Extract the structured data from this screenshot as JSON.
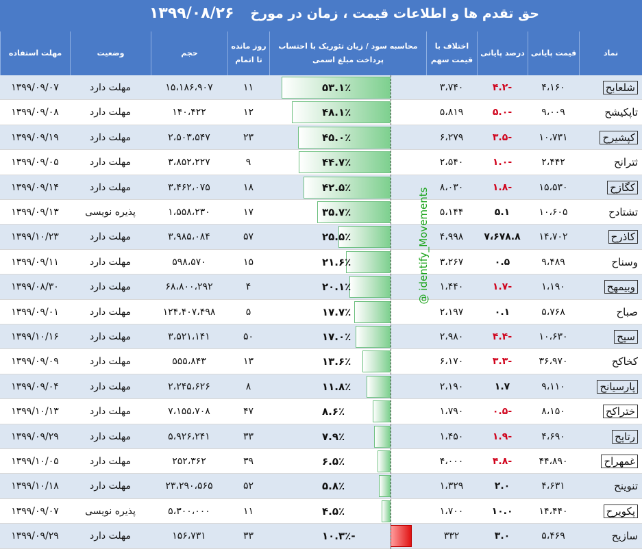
{
  "title": "حق تقدم ها و اطلاعات قیمت ، زمان   در مورخ",
  "date": "۱۳۹۹/۰۸/۲۶",
  "watermark": "@ identify_Movements",
  "headers": {
    "name": "نماد",
    "price": "قیمت پایانی",
    "pct": "درصد پایانی",
    "diff": "اختلاف با قیمت سهم",
    "calc": "محاسبه سود / زیان تئوریک با احتساب پرداخت مبلغ اسمی",
    "days": "روز مانده تا اتمام",
    "volume": "حجم",
    "status": "وضعیت",
    "deadline": "مهلت استفاده"
  },
  "colors": {
    "header_bg": "#4a7bc8",
    "negative": "#d0021b",
    "bar_positive": "#7ed08f",
    "bar_negative": "#e01313",
    "row_alt": "#dce6f2"
  },
  "rows": [
    {
      "name": "شلعابح",
      "price": "۴،۱۶۰",
      "pct": "-۴.۲",
      "diff": "۳،۷۴۰",
      "calc": "۵۳.۱٪",
      "calc_value": 53.1,
      "days": "۱۱",
      "volume": "۱۵،۱۸۶،۹۰۷",
      "status": "مهلت دارد",
      "deadline": "۱۳۹۹/۰۹/۰۷",
      "neg": true,
      "boxed": true
    },
    {
      "name": "تاپکیشح",
      "price": "۹،۰۰۹",
      "pct": "-۵.۰",
      "diff": "۵،۸۱۹",
      "calc": "۴۸.۱٪",
      "calc_value": 48.1,
      "days": "۱۲",
      "volume": "۱۴۰،۴۲۲",
      "status": "مهلت دارد",
      "deadline": "۱۳۹۹/۰۹/۰۸",
      "neg": true,
      "boxed": false
    },
    {
      "name": "کپشیرح",
      "price": "۱۰،۷۳۱",
      "pct": "-۳.۵",
      "diff": "۶،۲۷۹",
      "calc": "۴۵.۰٪",
      "calc_value": 45.0,
      "days": "۲۳",
      "volume": "۲،۵۰۳،۵۴۷",
      "status": "مهلت دارد",
      "deadline": "۱۳۹۹/۰۹/۱۹",
      "neg": true,
      "boxed": true
    },
    {
      "name": "ثترانح",
      "price": "۲،۴۴۲",
      "pct": "-۱.۰",
      "diff": "۲،۵۴۰",
      "calc": "۴۴.۷٪",
      "calc_value": 44.7,
      "days": "۹",
      "volume": "۳،۸۵۲،۲۲۷",
      "status": "مهلت دارد",
      "deadline": "۱۳۹۹/۰۹/۰۵",
      "neg": true,
      "boxed": false
    },
    {
      "name": "کگازح",
      "price": "۱۵،۵۳۰",
      "pct": "-۱.۸",
      "diff": "۸،۰۳۰",
      "calc": "۴۲.۵٪",
      "calc_value": 42.5,
      "days": "۱۸",
      "volume": "۳،۴۶۲،۰۷۵",
      "status": "مهلت دارد",
      "deadline": "۱۳۹۹/۰۹/۱۴",
      "neg": true,
      "boxed": true
    },
    {
      "name": "تشتادح",
      "price": "۱۰،۶۰۵",
      "pct": "۵.۱",
      "diff": "۵،۱۴۴",
      "calc": "۳۵.۷٪",
      "calc_value": 35.7,
      "days": "۱۷",
      "volume": "۱،۵۵۸،۲۳۰",
      "status": "پذیره نویسی",
      "deadline": "۱۳۹۹/۰۹/۱۳",
      "neg": false,
      "boxed": false
    },
    {
      "name": "کاذرح",
      "price": "۱۴،۷۰۲",
      "pct": "۷،۶۷۸.۸",
      "diff": "۴،۹۹۸",
      "calc": "۲۵.۵٪",
      "calc_value": 25.5,
      "days": "۵۷",
      "volume": "۳،۹۸۵،۰۸۴",
      "status": "مهلت دارد",
      "deadline": "۱۳۹۹/۱۰/۲۳",
      "neg": false,
      "boxed": true
    },
    {
      "name": "وسناح",
      "price": "۹،۴۸۹",
      "pct": "۰.۵",
      "diff": "۳،۲۶۷",
      "calc": "۲۱.۶٪",
      "calc_value": 21.6,
      "days": "۱۵",
      "volume": "۵۹۸،۵۷۰",
      "status": "مهلت دارد",
      "deadline": "۱۳۹۹/۰۹/۱۱",
      "neg": false,
      "boxed": false
    },
    {
      "name": "وبیمهح",
      "price": "۱،۱۹۰",
      "pct": "-۱.۷",
      "diff": "۱،۴۴۰",
      "calc": "۲۰.۱٪",
      "calc_value": 20.1,
      "days": "۴",
      "volume": "۶۸،۸۰۰،۲۹۲",
      "status": "مهلت دارد",
      "deadline": "۱۳۹۹/۰۸/۳۰",
      "neg": true,
      "boxed": true
    },
    {
      "name": "صباح",
      "price": "۵،۷۶۸",
      "pct": "۰.۱",
      "diff": "۲،۱۹۷",
      "calc": "۱۷.۷٪",
      "calc_value": 17.7,
      "days": "۵",
      "volume": "۱۲۴،۴۰۷،۴۹۸",
      "status": "مهلت دارد",
      "deadline": "۱۳۹۹/۰۹/۰۱",
      "neg": false,
      "boxed": false
    },
    {
      "name": "سپح",
      "price": "۱۰،۶۳۰",
      "pct": "-۴.۴",
      "diff": "۲،۹۸۰",
      "calc": "۱۷.۰٪",
      "calc_value": 17.0,
      "days": "۵۰",
      "volume": "۳،۵۲۱،۱۴۱",
      "status": "مهلت دارد",
      "deadline": "۱۳۹۹/۱۰/۱۶",
      "neg": true,
      "boxed": true
    },
    {
      "name": "کخاکح",
      "price": "۳۶،۹۷۰",
      "pct": "-۳.۳",
      "diff": "۶،۱۷۰",
      "calc": "۱۳.۶٪",
      "calc_value": 13.6,
      "days": "۱۳",
      "volume": "۵۵۵،۸۴۳",
      "status": "مهلت دارد",
      "deadline": "۱۳۹۹/۰۹/۰۹",
      "neg": true,
      "boxed": false
    },
    {
      "name": "پارسیانح",
      "price": "۹،۱۱۰",
      "pct": "۱.۷",
      "diff": "۲،۱۹۰",
      "calc": "۱۱.۸٪",
      "calc_value": 11.8,
      "days": "۸",
      "volume": "۲،۲۴۵،۶۲۶",
      "status": "مهلت دارد",
      "deadline": "۱۳۹۹/۰۹/۰۴",
      "neg": false,
      "boxed": true
    },
    {
      "name": "ختراکح",
      "price": "۸،۱۵۰",
      "pct": "-۰.۵",
      "diff": "۱،۷۹۰",
      "calc": "۸.۶٪",
      "calc_value": 8.6,
      "days": "۴۷",
      "volume": "۷،۱۵۵،۷۰۸",
      "status": "مهلت دارد",
      "deadline": "۱۳۹۹/۱۰/۱۳",
      "neg": true,
      "boxed": true
    },
    {
      "name": "رتاپح",
      "price": "۴،۶۹۰",
      "pct": "-۱.۹",
      "diff": "۱،۴۵۰",
      "calc": "۷.۹٪",
      "calc_value": 7.9,
      "days": "۳۳",
      "volume": "۵،۹۲۶،۲۴۱",
      "status": "مهلت دارد",
      "deadline": "۱۳۹۹/۰۹/۲۹",
      "neg": true,
      "boxed": true
    },
    {
      "name": "غمهراح",
      "price": "۴۴،۸۹۰",
      "pct": "-۴.۸",
      "diff": "۴،۰۰۰",
      "calc": "۶.۵٪",
      "calc_value": 6.5,
      "days": "۳۹",
      "volume": "۲۵۲،۳۶۲",
      "status": "مهلت دارد",
      "deadline": "۱۳۹۹/۱۰/۰۵",
      "neg": true,
      "boxed": true
    },
    {
      "name": "تنوینح",
      "price": "۴،۶۳۱",
      "pct": "۲.۰",
      "diff": "۱،۳۲۹",
      "calc": "۵.۸٪",
      "calc_value": 5.8,
      "days": "۵۲",
      "volume": "۲۳،۲۹۰،۵۶۵",
      "status": "مهلت دارد",
      "deadline": "۱۳۹۹/۱۰/۱۸",
      "neg": false,
      "boxed": false
    },
    {
      "name": "پکویرح",
      "price": "۱۴،۴۴۰",
      "pct": "۱۰.۰",
      "diff": "۱،۷۰۰",
      "calc": "۴.۵٪",
      "calc_value": 4.5,
      "days": "۱۱",
      "volume": "۵،۳۰۰،۰۰۰",
      "status": "پذیره نویسی",
      "deadline": "۱۳۹۹/۰۹/۰۷",
      "neg": false,
      "boxed": true
    },
    {
      "name": "سازیح",
      "price": "۵،۴۶۹",
      "pct": "۳.۰",
      "diff": "۳۳۲",
      "calc": "-۱۰.۳٪",
      "calc_value": -10.3,
      "days": "۳۳",
      "volume": "۱۵۶،۷۳۱",
      "status": "مهلت دارد",
      "deadline": "۱۳۹۹/۰۹/۲۹",
      "neg": false,
      "boxed": false
    }
  ]
}
